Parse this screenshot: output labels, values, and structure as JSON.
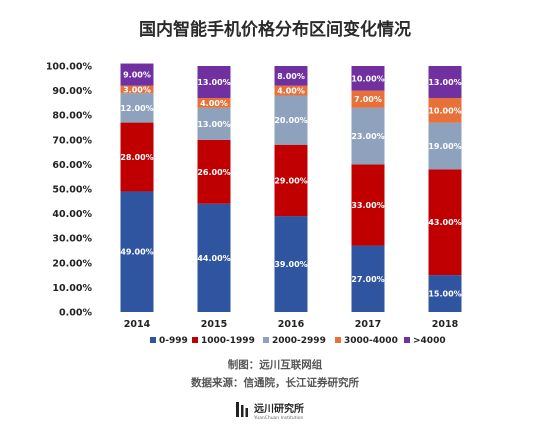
{
  "chart_data": {
    "type": "bar",
    "stacked": true,
    "title": "国内智能手机价格分布区间变化情况",
    "categories": [
      "2014",
      "2015",
      "2016",
      "2017",
      "2018"
    ],
    "series": [
      {
        "name": "0-999",
        "color": "#2f55a0",
        "values": [
          49,
          44,
          39,
          27,
          15
        ],
        "labels": [
          "49.00%",
          "44.00%",
          "39.00%",
          "27.00%",
          "15.00%"
        ]
      },
      {
        "name": "1000-1999",
        "color": "#c00000",
        "values": [
          28,
          26,
          29,
          33,
          43
        ],
        "labels": [
          "28.00%",
          "26.00%",
          "29.00%",
          "33.00%",
          "43.00%"
        ]
      },
      {
        "name": "2000-2999",
        "color": "#8fa2bd",
        "values": [
          12,
          13,
          20,
          23,
          19
        ],
        "labels": [
          "12.00%",
          "13.00%",
          "20.00%",
          "23.00%",
          "19.00%"
        ]
      },
      {
        "name": "3000-4000",
        "color": "#e8713a",
        "values": [
          3,
          4,
          4,
          7,
          10
        ],
        "labels": [
          "3.00%",
          "4.00%",
          "4.00%",
          "7.00%",
          "10.00%"
        ]
      },
      {
        "name": ">4000",
        "color": "#7030a0",
        "values": [
          9,
          13,
          8,
          10,
          13
        ],
        "labels": [
          "9.00%",
          "13.00%",
          "8.00%",
          "10.00%",
          "13.00%"
        ]
      }
    ],
    "ylim": [
      0,
      100
    ],
    "yticks": [
      "0.00%",
      "10.00%",
      "20.00%",
      "30.00%",
      "40.00%",
      "50.00%",
      "60.00%",
      "70.00%",
      "80.00%",
      "90.00%",
      "100.00%"
    ],
    "grid": false,
    "legend": "bottom"
  },
  "footer": {
    "maker": "制图：远川互联网组",
    "source": "数据来源：信通院，长江证券研究所",
    "logo_name": "远川研究所",
    "logo_sub": "YuanChuan Institution"
  }
}
